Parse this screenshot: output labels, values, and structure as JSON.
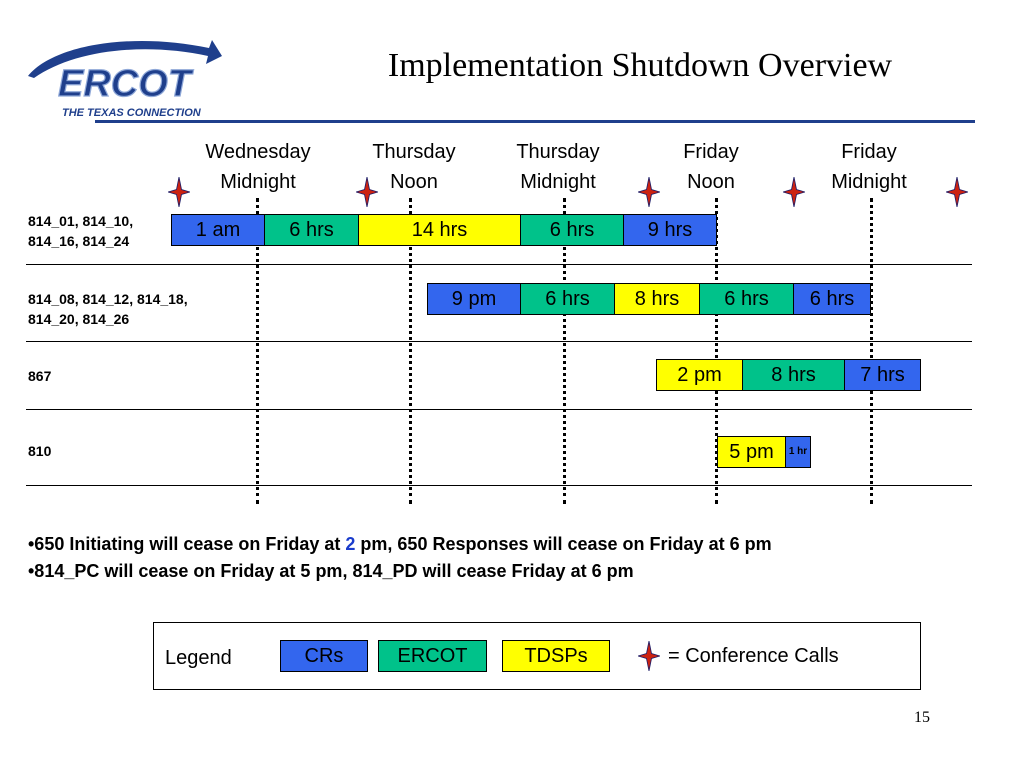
{
  "logo": {
    "name": "ERCOT",
    "tagline": "THE TEXAS CONNECTION"
  },
  "title": "Implementation Shutdown Overview",
  "columns": [
    {
      "line1": "Wednesday",
      "line2": "Midnight"
    },
    {
      "line1": "Thursday",
      "line2": "Noon"
    },
    {
      "line1": "Thursday",
      "line2": "Midnight"
    },
    {
      "line1": "Friday",
      "line2": "Noon"
    },
    {
      "line1": "Friday",
      "line2": "Midnight"
    }
  ],
  "rows": [
    {
      "label_line1": "814_01, 814_10,",
      "label_line2": "814_16, 814_24",
      "segments": [
        {
          "text": "1 am",
          "group": "CRs"
        },
        {
          "text": "6 hrs",
          "group": "ERCOT"
        },
        {
          "text": "14 hrs",
          "group": "TDSPs"
        },
        {
          "text": "6 hrs",
          "group": "ERCOT"
        },
        {
          "text": "9 hrs",
          "group": "CRs"
        }
      ]
    },
    {
      "label_line1": "814_08, 814_12, 814_18,",
      "label_line2": "814_20, 814_26",
      "segments": [
        {
          "text": "9 pm",
          "group": "CRs"
        },
        {
          "text": "6 hrs",
          "group": "ERCOT"
        },
        {
          "text": "8 hrs",
          "group": "TDSPs"
        },
        {
          "text": "6 hrs",
          "group": "ERCOT"
        },
        {
          "text": "6 hrs",
          "group": "CRs"
        }
      ]
    },
    {
      "label_line1": "867",
      "segments": [
        {
          "text": "2 pm",
          "group": "TDSPs"
        },
        {
          "text": "8 hrs",
          "group": "ERCOT"
        },
        {
          "text": "7 hrs",
          "group": "CRs"
        }
      ]
    },
    {
      "label_line1": "810",
      "segments": [
        {
          "text": "5 pm",
          "group": "TDSPs"
        },
        {
          "text": "1 hr",
          "group": "CRs"
        }
      ]
    }
  ],
  "notes": [
    {
      "prefix": "•650 Initiating will cease on Friday at ",
      "highlight": "2",
      "suffix": " pm, 650 Responses will cease on Friday at 6 pm"
    },
    {
      "prefix": "•814_PC will cease on Friday at 5 pm, 814_PD will cease Friday at 6 pm"
    }
  ],
  "legend": {
    "label": "Legend",
    "items": [
      {
        "text": "CRs",
        "color": "#3366ee"
      },
      {
        "text": "ERCOT",
        "color": "#00c28a"
      },
      {
        "text": "TDSPs",
        "color": "#ffff00"
      }
    ],
    "conference_calls": "= Conference Calls"
  },
  "conference_marker_color": "#cc2211",
  "page_number": "15"
}
